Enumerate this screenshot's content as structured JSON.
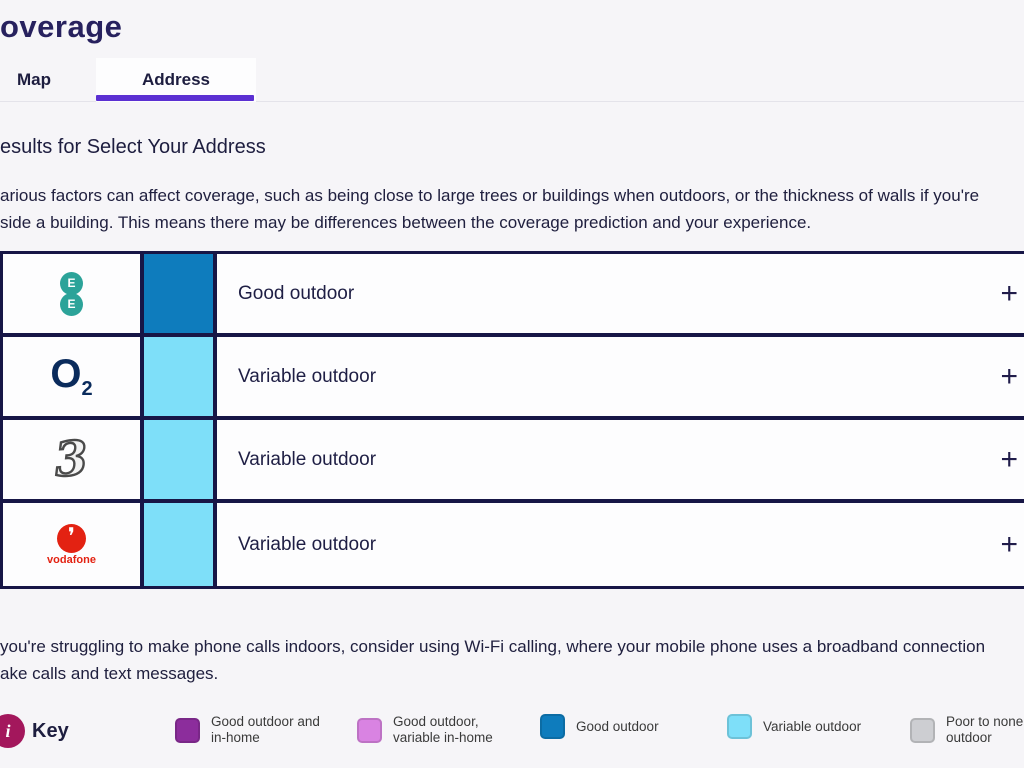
{
  "page": {
    "title": "overage"
  },
  "tabs": {
    "map": "Map",
    "address": "Address"
  },
  "results": {
    "heading": "esults for Select Your Address",
    "intro_line1": "arious factors can affect coverage, such as being close to large trees or buildings when outdoors, or the thickness of walls if you're",
    "intro_line2": "side a building. This means there may be differences between the coverage prediction and your experience."
  },
  "table": {
    "rows": [
      {
        "operator": "EE",
        "status": "Good outdoor",
        "color": "#0e7cbd",
        "expand": "+"
      },
      {
        "operator": "O2",
        "status": "Variable outdoor",
        "color": "#7edff9",
        "expand": "+"
      },
      {
        "operator": "Three",
        "status": "Variable outdoor",
        "color": "#7edff9",
        "expand": "+"
      },
      {
        "operator": "Vodafone",
        "status": "Variable outdoor",
        "color": "#7edff9",
        "expand": "+"
      }
    ]
  },
  "wifi_note_line1": "you're struggling to make phone calls indoors, consider using Wi-Fi calling, where your mobile phone uses a broadband connection",
  "wifi_note_line2": "ake calls and text messages.",
  "key": {
    "label": "Key",
    "info_icon": "i",
    "items": [
      {
        "line1": "Good outdoor and",
        "line2": "in-home",
        "color": "#8c2d9c"
      },
      {
        "line1": "Good outdoor,",
        "line2": "variable in-home",
        "color": "#d983e2"
      },
      {
        "line1": "Good outdoor",
        "line2": "",
        "color": "#0e7cbd"
      },
      {
        "line1": "Variable outdoor",
        "line2": "",
        "color": "#7edff9"
      },
      {
        "line1": "Poor to none",
        "line2": "outdoor",
        "color": "#cdced2"
      }
    ]
  },
  "logos": {
    "ee_letter": "E",
    "o2_main": "O",
    "o2_sub": "2",
    "three": "3",
    "vodafone_mark": "❜",
    "vodafone_text": "vodafone"
  },
  "colors": {
    "accent_purple": "#5b30d2",
    "table_border": "#171646",
    "good_outdoor": "#0e7cbd",
    "variable_outdoor": "#7edff9"
  }
}
